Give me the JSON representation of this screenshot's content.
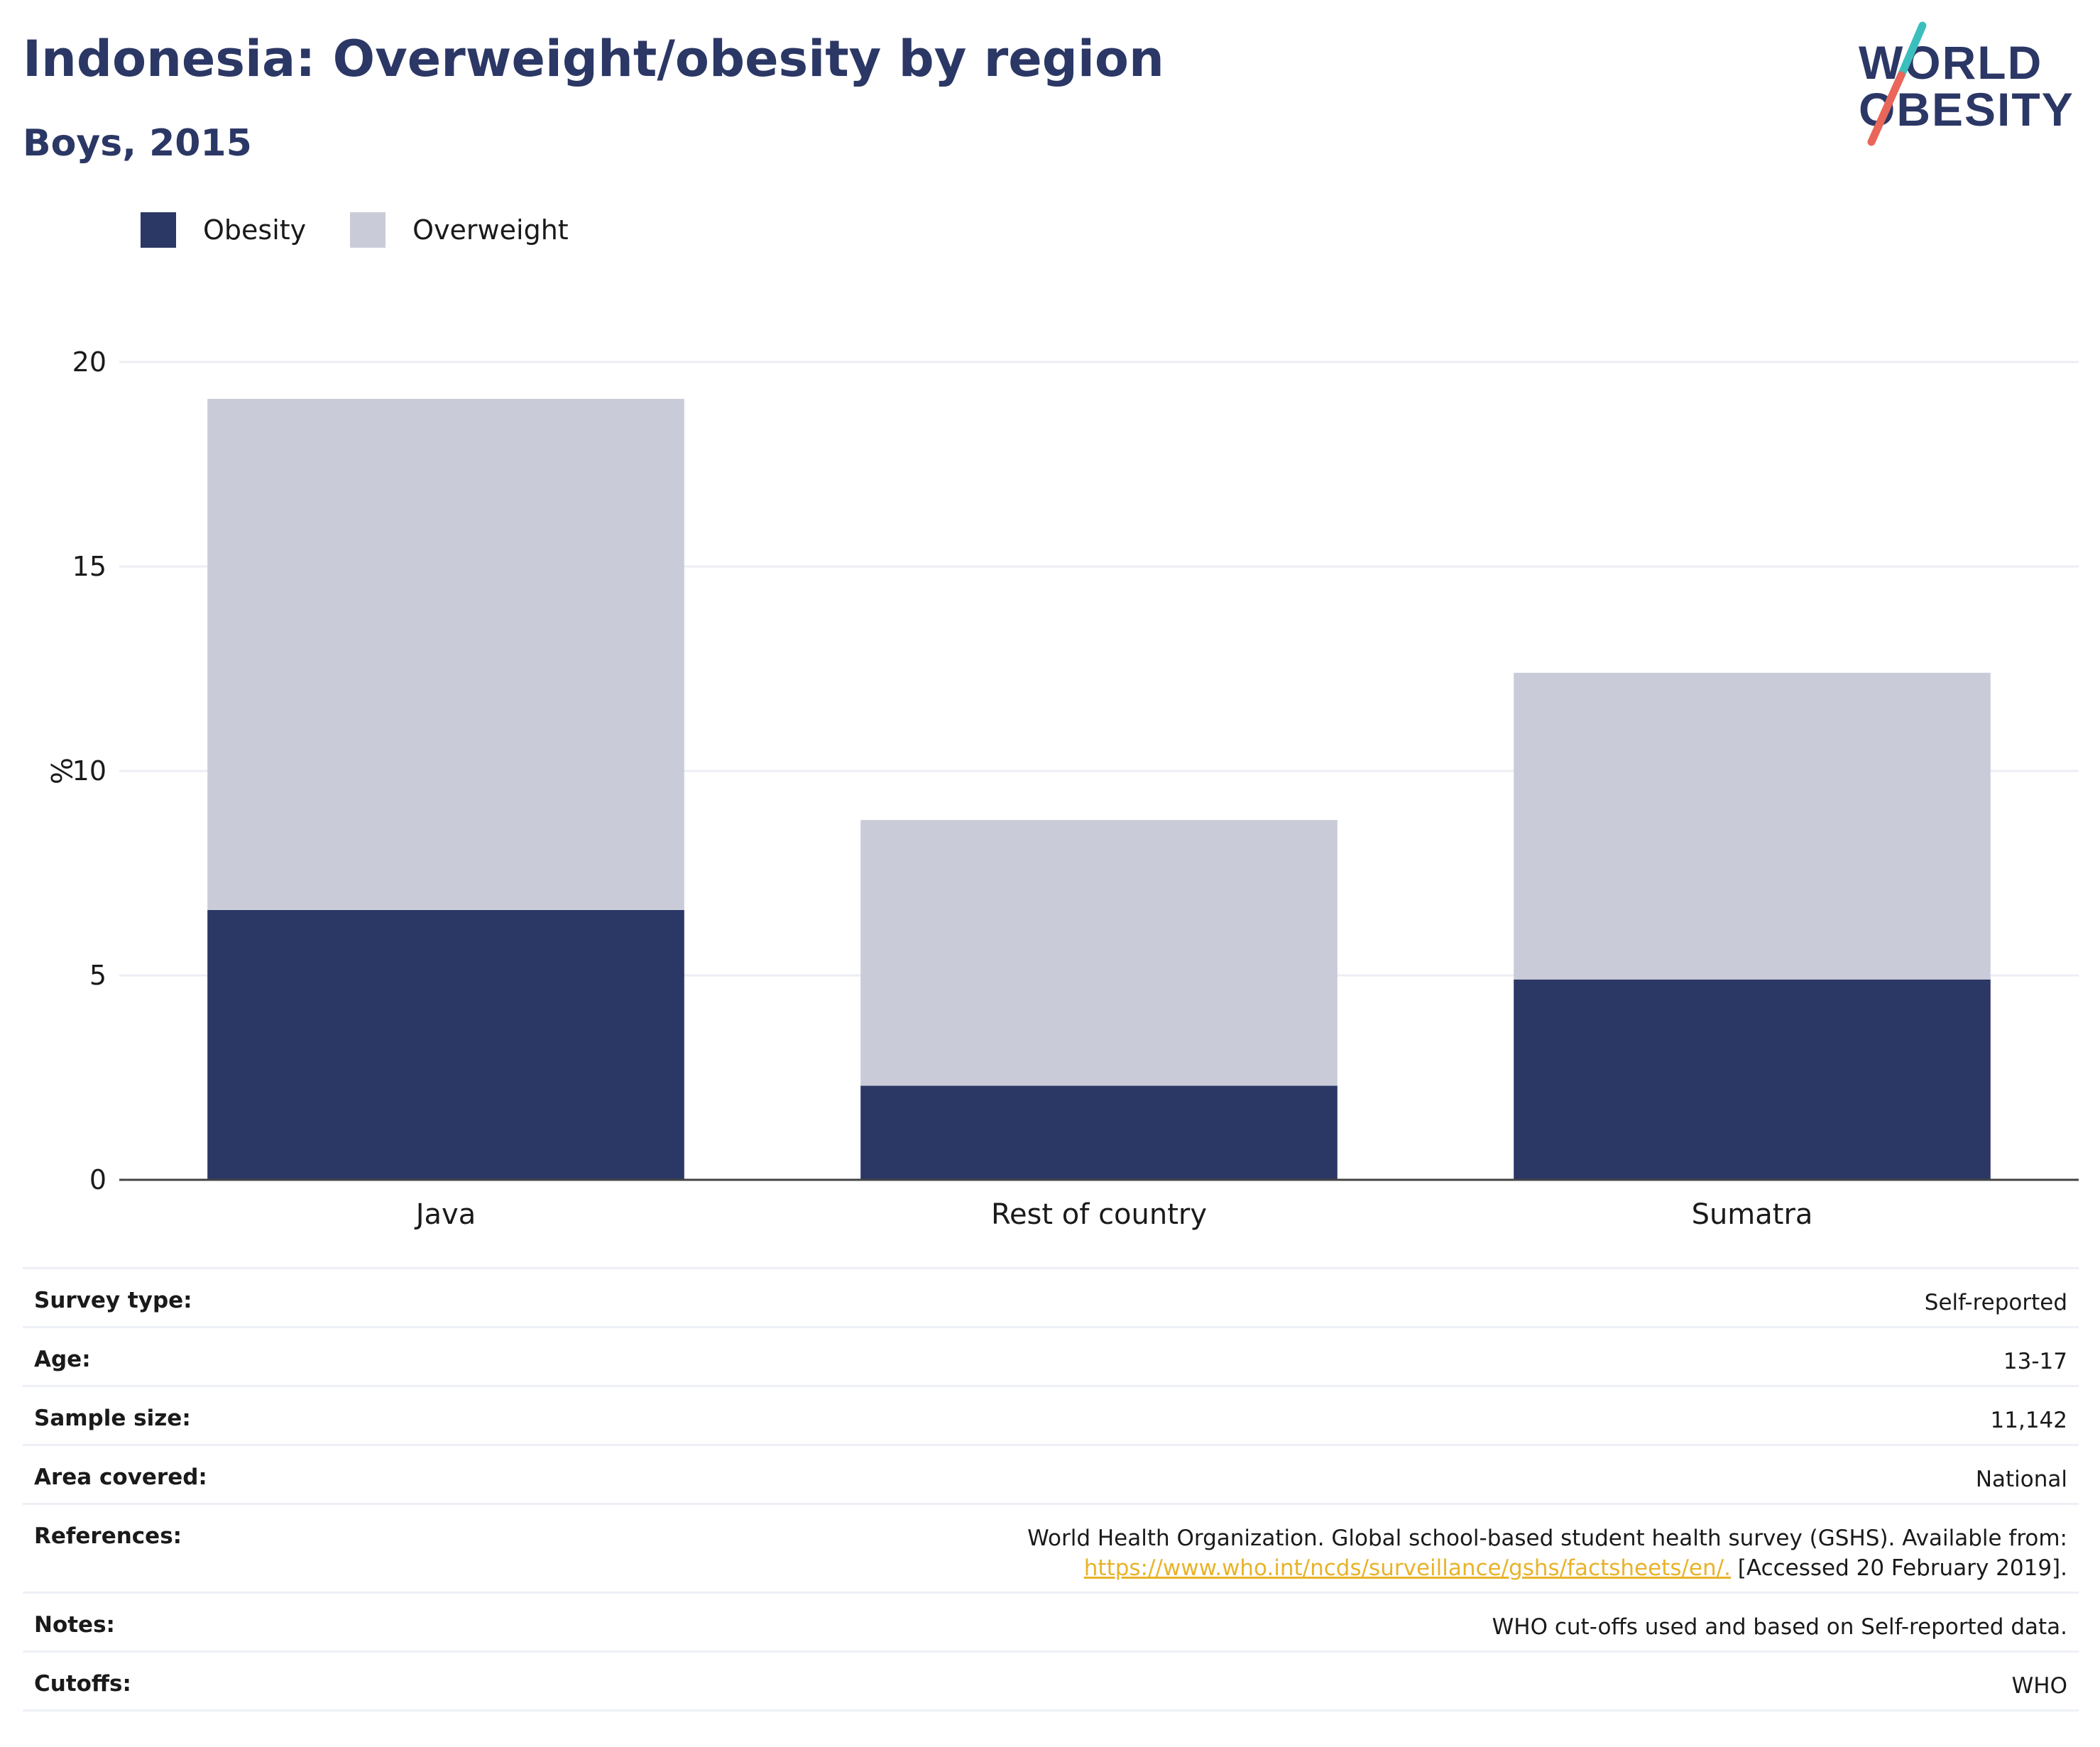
{
  "header": {
    "title": "Indonesia: Overweight/obesity by region",
    "subtitle": "Boys, 2015"
  },
  "logo": {
    "line1": "WORLD",
    "line2": "OBESITY",
    "colors": {
      "text": "#2b3765",
      "slash_top": "#3bbfbd",
      "slash_bottom": "#e8675a"
    }
  },
  "legend": [
    {
      "label": "Obesity",
      "color": "#2b3765"
    },
    {
      "label": "Overweight",
      "color": "#c9ccd8"
    }
  ],
  "chart_data": {
    "type": "bar",
    "stacked": true,
    "categories": [
      "Java",
      "Rest of country",
      "Sumatra"
    ],
    "series": [
      {
        "name": "Obesity",
        "color": "#2b3765",
        "values": [
          6.6,
          2.3,
          4.9
        ]
      },
      {
        "name": "Overweight",
        "color": "#c9ccd8",
        "values": [
          12.5,
          6.5,
          7.5
        ]
      }
    ],
    "ylabel": "%",
    "ylim": [
      0,
      20
    ],
    "yticks": [
      0,
      5,
      10,
      15,
      20
    ],
    "grid": true,
    "legend_position": "top-left"
  },
  "meta": [
    {
      "key": "Survey type:",
      "value": "Self-reported"
    },
    {
      "key": "Age:",
      "value": "13-17"
    },
    {
      "key": "Sample size:",
      "value": "11,142"
    },
    {
      "key": "Area covered:",
      "value": "National"
    },
    {
      "key": "References:",
      "value": "World Health Organization. Global school-based student health survey (GSHS). Available from:",
      "link": "https://www.who.int/ncds/surveillance/gshs/factsheets/en/.",
      "suffix": " [Accessed 20 February 2019]."
    },
    {
      "key": "Notes:",
      "value": "WHO cut-offs used and based on Self-reported data."
    },
    {
      "key": "Cutoffs:",
      "value": "WHO"
    }
  ]
}
